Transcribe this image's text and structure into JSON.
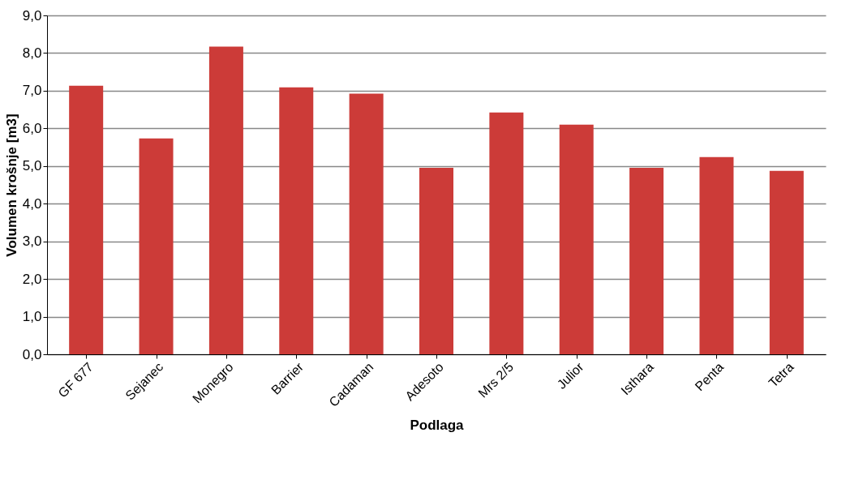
{
  "chart_data": {
    "type": "bar",
    "xlabel": "Podlaga",
    "ylabel": "Volumen krošnje [m3]",
    "categories": [
      "GF 677",
      "Sejanec",
      "Monegro",
      "Barrier",
      "Cadaman",
      "Adesoto",
      "Mrs 2/5",
      "Julior",
      "Isthara",
      "Penta",
      "Tetra"
    ],
    "values": [
      7.13,
      5.73,
      8.17,
      7.09,
      6.92,
      4.95,
      6.42,
      6.1,
      4.95,
      5.24,
      4.87
    ],
    "color": "#cc3b38",
    "ylim": [
      0,
      9
    ],
    "yticks": [
      {
        "value": 0,
        "label": "0,0"
      },
      {
        "value": 1,
        "label": "1,0"
      },
      {
        "value": 2,
        "label": "2,0"
      },
      {
        "value": 3,
        "label": "3,0"
      },
      {
        "value": 4,
        "label": "4,0"
      },
      {
        "value": 5,
        "label": "5,0"
      },
      {
        "value": 6,
        "label": "6,0"
      },
      {
        "value": 7,
        "label": "7,0"
      },
      {
        "value": 8,
        "label": "8,0"
      },
      {
        "value": 9,
        "label": "9,0"
      }
    ],
    "grid": "y"
  }
}
